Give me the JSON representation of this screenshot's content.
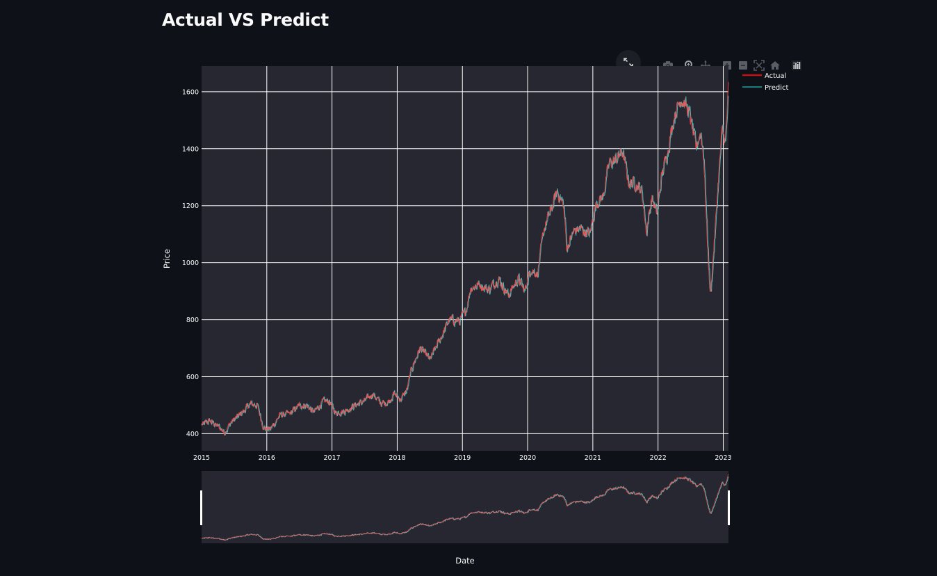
{
  "page": {
    "title": "Actual VS Predict"
  },
  "toolbar": {
    "fullscreen_icon": "expand-icon",
    "modebar_icons": [
      "camera-icon",
      "zoom-icon",
      "pan-icon",
      "zoom-in-icon",
      "zoom-out-icon",
      "autoscale-icon",
      "home-icon",
      "plotly-logo-icon"
    ]
  },
  "colors": {
    "page_bg": "#0e1117",
    "plot_bg": "#262730",
    "grid": "#ffffff",
    "actual": "#ff4b4b",
    "actual_legend": "#c81010",
    "predict": "#4ec9c9",
    "predict_legend": "#1f9fa0"
  },
  "chart_data": {
    "type": "line",
    "title": "Actual VS Predict",
    "xlabel": "Date",
    "ylabel": "Price",
    "x_tick_labels": [
      "2015",
      "2016",
      "2017",
      "2018",
      "2019",
      "2020",
      "2021",
      "2022",
      "2023"
    ],
    "x_range": [
      2015.0,
      2023.08
    ],
    "y_ticks": [
      400,
      600,
      800,
      1000,
      1200,
      1400,
      1600
    ],
    "y_range": [
      340,
      1690
    ],
    "grid": true,
    "legend_position": "top-right",
    "range_slider": true,
    "series": [
      {
        "name": "Actual",
        "anchors": [
          [
            2015.0,
            430
          ],
          [
            2015.12,
            445
          ],
          [
            2015.25,
            425
          ],
          [
            2015.35,
            405
          ],
          [
            2015.45,
            440
          ],
          [
            2015.6,
            470
          ],
          [
            2015.75,
            505
          ],
          [
            2015.85,
            500
          ],
          [
            2015.95,
            420
          ],
          [
            2016.05,
            415
          ],
          [
            2016.2,
            465
          ],
          [
            2016.35,
            470
          ],
          [
            2016.5,
            500
          ],
          [
            2016.6,
            500
          ],
          [
            2016.72,
            475
          ],
          [
            2016.85,
            510
          ],
          [
            2016.95,
            515
          ],
          [
            2017.05,
            475
          ],
          [
            2017.2,
            480
          ],
          [
            2017.35,
            500
          ],
          [
            2017.5,
            515
          ],
          [
            2017.62,
            540
          ],
          [
            2017.75,
            505
          ],
          [
            2017.85,
            510
          ],
          [
            2017.95,
            540
          ],
          [
            2018.05,
            520
          ],
          [
            2018.15,
            555
          ],
          [
            2018.22,
            630
          ],
          [
            2018.35,
            700
          ],
          [
            2018.5,
            660
          ],
          [
            2018.65,
            730
          ],
          [
            2018.8,
            800
          ],
          [
            2018.95,
            795
          ],
          [
            2019.05,
            830
          ],
          [
            2019.12,
            910
          ],
          [
            2019.25,
            925
          ],
          [
            2019.4,
            905
          ],
          [
            2019.55,
            945
          ],
          [
            2019.7,
            885
          ],
          [
            2019.85,
            945
          ],
          [
            2019.95,
            900
          ],
          [
            2020.05,
            980
          ],
          [
            2020.15,
            960
          ],
          [
            2020.25,
            1120
          ],
          [
            2020.35,
            1180
          ],
          [
            2020.45,
            1250
          ],
          [
            2020.55,
            1200
          ],
          [
            2020.6,
            1050
          ],
          [
            2020.7,
            1110
          ],
          [
            2020.8,
            1120
          ],
          [
            2020.95,
            1100
          ],
          [
            2021.05,
            1210
          ],
          [
            2021.15,
            1230
          ],
          [
            2021.25,
            1350
          ],
          [
            2021.35,
            1360
          ],
          [
            2021.45,
            1390
          ],
          [
            2021.55,
            1280
          ],
          [
            2021.65,
            1280
          ],
          [
            2021.75,
            1250
          ],
          [
            2021.82,
            1110
          ],
          [
            2021.9,
            1230
          ],
          [
            2021.98,
            1170
          ],
          [
            2022.05,
            1300
          ],
          [
            2022.15,
            1400
          ],
          [
            2022.25,
            1520
          ],
          [
            2022.35,
            1580
          ],
          [
            2022.45,
            1540
          ],
          [
            2022.5,
            1500
          ],
          [
            2022.58,
            1400
          ],
          [
            2022.65,
            1460
          ],
          [
            2022.7,
            1370
          ],
          [
            2022.75,
            1100
          ],
          [
            2022.8,
            880
          ],
          [
            2022.87,
            1100
          ],
          [
            2022.92,
            1280
          ],
          [
            2022.98,
            1460
          ],
          [
            2023.03,
            1420
          ],
          [
            2023.08,
            1610
          ]
        ]
      },
      {
        "name": "Predict",
        "anchors": []
      }
    ]
  }
}
